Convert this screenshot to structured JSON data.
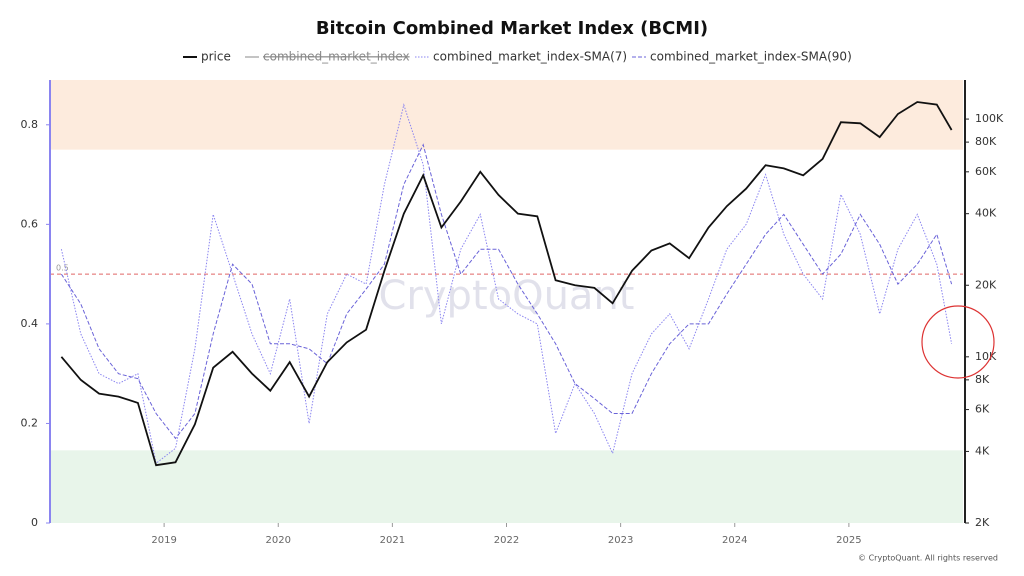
{
  "chart_data": {
    "type": "line",
    "title": "Bitcoin Combined Market Index (BCMI)",
    "watermark": "CryptoQuant",
    "credit": "© CryptoQuant. All rights reserved",
    "x": [
      2018.1,
      2018.27,
      2018.43,
      2018.6,
      2018.77,
      2018.93,
      2019.1,
      2019.27,
      2019.43,
      2019.6,
      2019.77,
      2019.93,
      2020.1,
      2020.27,
      2020.43,
      2020.6,
      2020.77,
      2020.93,
      2021.1,
      2021.27,
      2021.43,
      2021.6,
      2021.77,
      2021.93,
      2022.1,
      2022.27,
      2022.43,
      2022.6,
      2022.77,
      2022.93,
      2023.1,
      2023.27,
      2023.43,
      2023.6,
      2023.77,
      2023.93,
      2024.1,
      2024.27,
      2024.43,
      2024.6,
      2024.77,
      2024.93,
      2025.1,
      2025.27,
      2025.43,
      2025.6,
      2025.77,
      2025.9
    ],
    "xlim": [
      2018.0,
      2026.0
    ],
    "xticks": [
      2019,
      2020,
      2021,
      2022,
      2023,
      2024,
      2025
    ],
    "ylim": [
      0,
      0.89
    ],
    "yticks": [
      0,
      0.2,
      0.4,
      0.6,
      0.8
    ],
    "y2lim": [
      2000,
      146000
    ],
    "y2scale": "log",
    "y2ticks": [
      {
        "value": 2000,
        "label": "2K"
      },
      {
        "value": 4000,
        "label": "4K"
      },
      {
        "value": 6000,
        "label": "6K"
      },
      {
        "value": 8000,
        "label": "8K"
      },
      {
        "value": 10000,
        "label": "10K"
      },
      {
        "value": 20000,
        "label": "20K"
      },
      {
        "value": 40000,
        "label": "40K"
      },
      {
        "value": 60000,
        "label": "60K"
      },
      {
        "value": 80000,
        "label": "80K"
      },
      {
        "value": 100000,
        "label": "100K"
      }
    ],
    "zones": [
      {
        "from": 0.75,
        "to": 0.89,
        "color": "#fdebdd"
      },
      {
        "from": 0,
        "to": 0.146,
        "color": "#e8f5ea"
      }
    ],
    "threshold": 0.5,
    "series": [
      {
        "name": "price",
        "color": "#111111",
        "axis": "y2",
        "style": "solid",
        "values": [
          10000,
          8000,
          7000,
          6800,
          6400,
          3500,
          3600,
          5200,
          9000,
          10500,
          8500,
          7200,
          9500,
          6800,
          9500,
          11500,
          13000,
          23000,
          40000,
          58000,
          35000,
          45000,
          60000,
          48000,
          40000,
          39000,
          21000,
          20000,
          19500,
          16800,
          23000,
          28000,
          30000,
          26000,
          35000,
          43000,
          51000,
          64000,
          62000,
          58000,
          68000,
          97000,
          96000,
          84000,
          105000,
          118000,
          115000,
          90000
        ]
      },
      {
        "name": "combined_market_index",
        "color": "#888888",
        "hidden": true
      },
      {
        "name": "combined_market_index-SMA(7)",
        "color": "#8a84f0",
        "style": "dotted",
        "values": [
          0.55,
          0.38,
          0.3,
          0.28,
          0.3,
          0.12,
          0.15,
          0.35,
          0.62,
          0.5,
          0.38,
          0.3,
          0.45,
          0.2,
          0.42,
          0.5,
          0.48,
          0.68,
          0.84,
          0.72,
          0.4,
          0.55,
          0.62,
          0.45,
          0.42,
          0.4,
          0.18,
          0.28,
          0.22,
          0.14,
          0.3,
          0.38,
          0.42,
          0.35,
          0.45,
          0.55,
          0.6,
          0.7,
          0.58,
          0.5,
          0.45,
          0.66,
          0.58,
          0.42,
          0.55,
          0.62,
          0.52,
          0.36
        ]
      },
      {
        "name": "combined_market_index-SMA(90)",
        "color": "#6a63d8",
        "style": "dashed",
        "values": [
          0.5,
          0.44,
          0.35,
          0.3,
          0.29,
          0.22,
          0.17,
          0.22,
          0.38,
          0.52,
          0.48,
          0.36,
          0.36,
          0.35,
          0.32,
          0.42,
          0.47,
          0.52,
          0.68,
          0.76,
          0.62,
          0.5,
          0.55,
          0.55,
          0.48,
          0.42,
          0.36,
          0.28,
          0.25,
          0.22,
          0.22,
          0.3,
          0.36,
          0.4,
          0.4,
          0.46,
          0.52,
          0.58,
          0.62,
          0.56,
          0.5,
          0.54,
          0.62,
          0.56,
          0.48,
          0.52,
          0.58,
          0.48
        ]
      }
    ]
  }
}
